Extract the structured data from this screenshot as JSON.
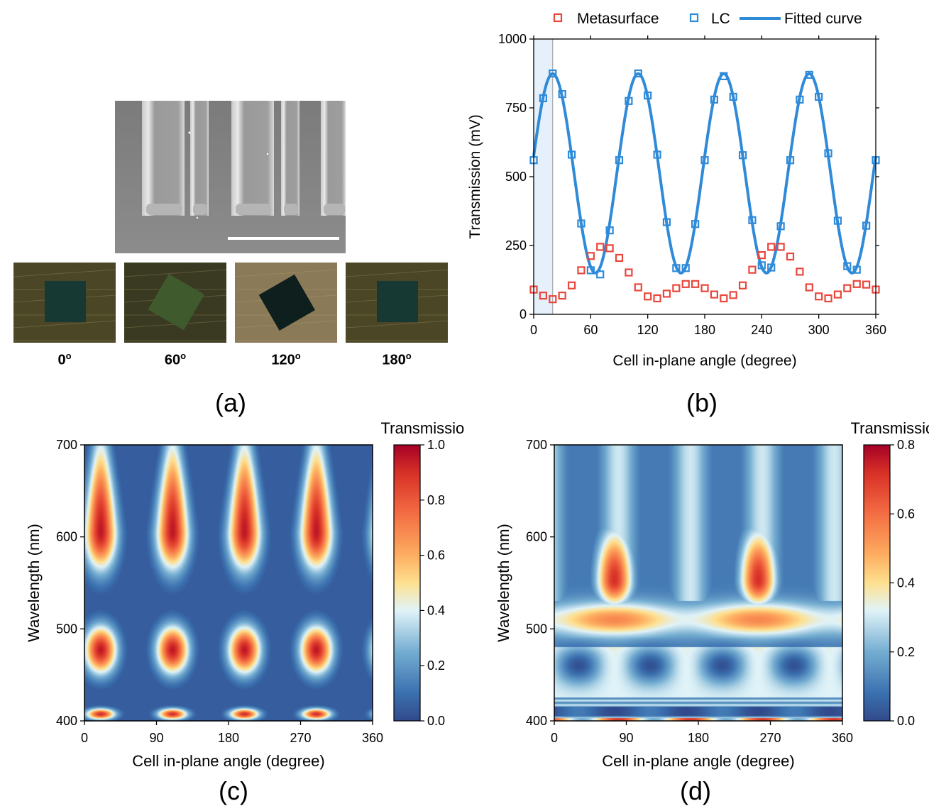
{
  "panel_a": {
    "label": "(a)",
    "sem_description_hidden": false,
    "micrographs": [
      {
        "angle": "0",
        "superscript": "o",
        "rotation": 0,
        "square_color": "#163a33",
        "bg_color": "#4a4626"
      },
      {
        "angle": "60",
        "superscript": "o",
        "rotation": 30,
        "square_color": "#3f5a2c",
        "bg_color": "#3a3a22"
      },
      {
        "angle": "120",
        "superscript": "o",
        "rotation": 60,
        "square_color": "#0f1f1d",
        "bg_color": "#8a7a58"
      },
      {
        "angle": "180",
        "superscript": "o",
        "rotation": 0,
        "square_color": "#163a33",
        "bg_color": "#4a4626"
      }
    ]
  },
  "panel_b": {
    "label": "(b)"
  },
  "panel_c": {
    "label": "(c)"
  },
  "panel_d": {
    "label": "(d)"
  },
  "chart_data": [
    {
      "id": "b",
      "type": "line+scatter",
      "xlabel": "Cell in-plane angle (degree)",
      "ylabel": "Transmission (mV)",
      "xlim": [
        0,
        360
      ],
      "ylim": [
        0,
        1000
      ],
      "xticks": [
        0,
        60,
        120,
        180,
        240,
        300,
        360
      ],
      "yticks": [
        0,
        250,
        500,
        750,
        1000
      ],
      "legend": [
        "Metasurface",
        "LC",
        "Fitted curve"
      ],
      "legend_placement": "top",
      "highlight_region": [
        0,
        20
      ],
      "series": [
        {
          "name": "Metasurface",
          "marker": "square-open",
          "color": "#e8473c",
          "x": [
            0,
            10,
            20,
            30,
            40,
            50,
            60,
            70,
            80,
            90,
            100,
            110,
            120,
            130,
            140,
            150,
            160,
            170,
            180,
            190,
            200,
            210,
            220,
            230,
            240,
            250,
            260,
            270,
            280,
            290,
            300,
            310,
            320,
            330,
            340,
            350,
            360
          ],
          "y": [
            90,
            68,
            55,
            68,
            105,
            160,
            212,
            245,
            240,
            205,
            152,
            98,
            65,
            58,
            75,
            95,
            110,
            110,
            95,
            72,
            58,
            70,
            105,
            162,
            215,
            245,
            245,
            210,
            155,
            98,
            65,
            58,
            72,
            95,
            110,
            108,
            90
          ]
        },
        {
          "name": "LC",
          "marker": "square-open",
          "color": "#2f8ad8",
          "x": [
            0,
            10,
            20,
            30,
            40,
            50,
            60,
            70,
            80,
            90,
            100,
            110,
            120,
            130,
            140,
            150,
            160,
            170,
            180,
            190,
            200,
            210,
            220,
            230,
            240,
            250,
            260,
            270,
            280,
            290,
            300,
            310,
            320,
            330,
            340,
            350,
            360
          ],
          "y": [
            560,
            785,
            875,
            800,
            580,
            330,
            160,
            145,
            305,
            560,
            775,
            875,
            795,
            580,
            335,
            168,
            168,
            328,
            560,
            780,
            865,
            790,
            578,
            342,
            178,
            170,
            320,
            560,
            780,
            870,
            790,
            585,
            340,
            175,
            162,
            322,
            560
          ]
        },
        {
          "name": "Fitted curve",
          "type": "line",
          "color": "#2f8ad8",
          "function": "sine",
          "offset": 512,
          "amplitude": 362,
          "period": 90,
          "peak_at": 20
        }
      ]
    },
    {
      "id": "c",
      "type": "heatmap",
      "xlabel": "Cell in-plane angle (degree)",
      "ylabel": "Wavelength (nm)",
      "colorbar_title": "Transmission",
      "xlim": [
        0,
        360
      ],
      "ylim": [
        400,
        700
      ],
      "xticks": [
        0,
        90,
        180,
        270,
        360
      ],
      "yticks": [
        400,
        500,
        600,
        700
      ],
      "clim": [
        0,
        1.0
      ],
      "colorbar_ticks": [
        "0.0",
        "0.2",
        "0.4",
        "0.6",
        "0.8",
        "1.0"
      ],
      "period_deg": 90,
      "peak_angles": [
        20,
        110,
        200,
        290
      ],
      "bands": [
        {
          "center_nm": 605,
          "amplitude": 0.95,
          "angular_width_deg": 20,
          "wavelength_width_nm": 90
        },
        {
          "center_nm": 477,
          "amplitude": 0.95,
          "angular_width_deg": 20,
          "wavelength_width_nm": 26
        },
        {
          "center_nm": 407,
          "amplitude": 0.9,
          "angular_width_deg": 18,
          "wavelength_width_nm": 6
        }
      ],
      "colormap": "RdYlBu_r"
    },
    {
      "id": "d",
      "type": "heatmap",
      "xlabel": "Cell in-plane angle (degree)",
      "ylabel": "Wavelength (nm)",
      "colorbar_title": "Transmission",
      "xlim": [
        0,
        360
      ],
      "ylim": [
        400,
        700
      ],
      "xticks": [
        0,
        90,
        180,
        270,
        360
      ],
      "yticks": [
        400,
        500,
        600,
        700
      ],
      "clim": [
        0,
        0.8
      ],
      "colorbar_ticks": [
        "0.0",
        "0.2",
        "0.4",
        "0.6",
        "0.8"
      ],
      "hotspots": [
        {
          "angle": 75,
          "wavelength_nm": 553,
          "value": 0.72
        },
        {
          "angle": 255,
          "wavelength_nm": 553,
          "value": 0.72
        }
      ],
      "band_center_nm": 510,
      "band_value": 0.45,
      "dark_spots_nm": 460,
      "colormap": "RdYlBu_r"
    }
  ]
}
